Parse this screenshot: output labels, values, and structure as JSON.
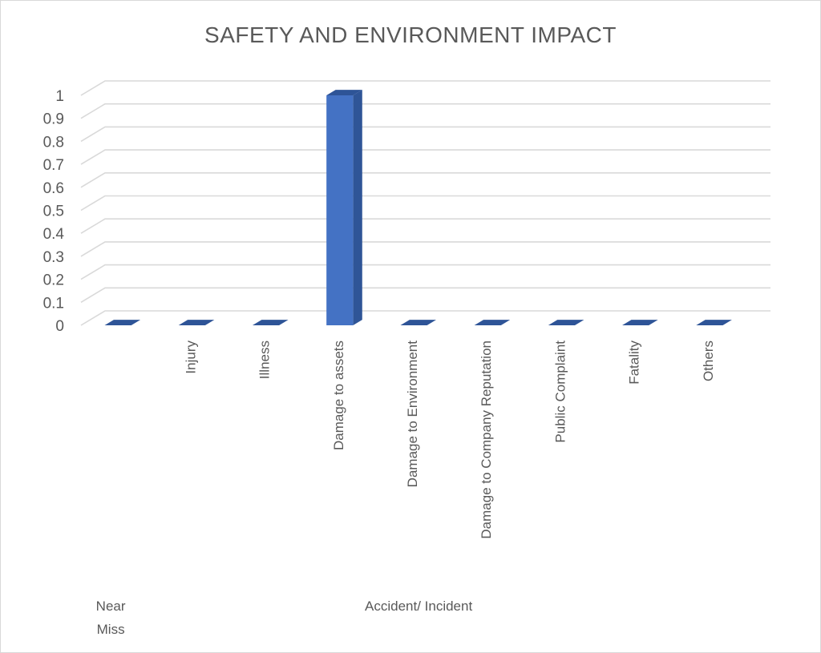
{
  "chart_data": {
    "type": "bar",
    "title": "SAFETY AND ENVIRONMENT IMPACT",
    "categories": [
      "",
      "Injury",
      "Illness",
      "Damage to assets",
      "Damage to Environment",
      "Damage to Company Reputation",
      "Public Complaint",
      "Fatality",
      "Others"
    ],
    "values": [
      0,
      0,
      0,
      1,
      0,
      0,
      0,
      0,
      0
    ],
    "category_groups": [
      {
        "label_lines": [
          "Near",
          "Miss"
        ],
        "categories": [
          ""
        ]
      },
      {
        "label_lines": [
          "Accident/ Incident"
        ],
        "categories": [
          "Injury",
          "Illness",
          "Damage to assets",
          "Damage to Environment",
          "Damage to Company Reputation",
          "Public Complaint",
          "Fatality",
          "Others"
        ]
      }
    ],
    "y_ticks": [
      "0",
      "0.1",
      "0.2",
      "0.3",
      "0.4",
      "0.5",
      "0.6",
      "0.7",
      "0.8",
      "0.9",
      "1"
    ],
    "ylim": [
      0,
      1
    ],
    "grid": true,
    "legend": "none",
    "style": "3d-column",
    "colors": {
      "bar_front": "#4472c4",
      "bar_side": "#2f5597",
      "bar_top": "#2e5497",
      "grid": "#d9d9d9",
      "text": "#595959"
    }
  }
}
